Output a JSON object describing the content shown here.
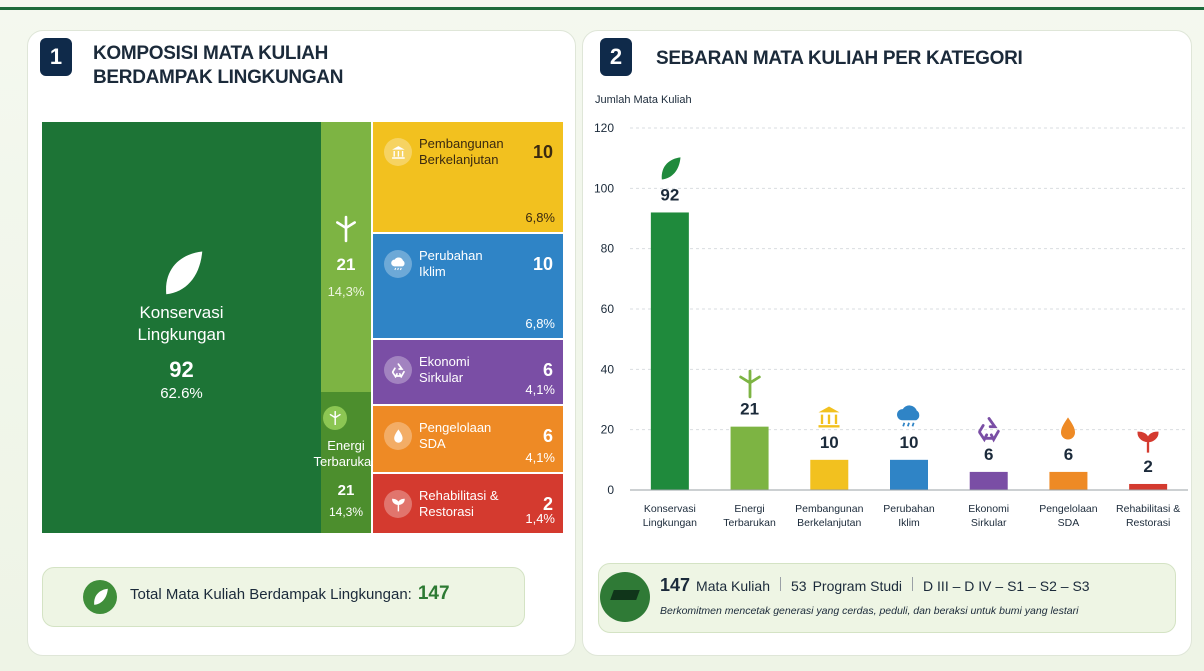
{
  "chart_data": [
    {
      "type": "treemap",
      "number": "1",
      "title": "KOMPOSISI MATA KULIAH BERDAMPAK LINGKUNGAN",
      "categories": [
        "Konservasi Lingkungan",
        "Energi Terbarukan",
        "Pembangunan Berkelanjutan",
        "Perubahan Iklim",
        "Ekonomi Sirkular",
        "Pengelolaan SDA",
        "Rehabilitasi & Restorasi"
      ],
      "values": [
        92,
        21,
        10,
        10,
        6,
        6,
        2
      ],
      "percents": [
        62.6,
        14.3,
        6.8,
        6.8,
        4.1,
        4.1,
        1.4
      ],
      "percent_labels": [
        "62.6%",
        "14,3%",
        "6,8%",
        "6,8%",
        "4,1%",
        "4,1%",
        "1,4%"
      ],
      "colors": [
        "#1d7436",
        "#7db443",
        "#f2c11f",
        "#2f84c6",
        "#7a4ea5",
        "#ee8a25",
        "#d43a2f"
      ],
      "total_label": "Total Mata Kuliah Berdampak Lingkungan:",
      "total": 147
    },
    {
      "type": "bar",
      "number": "2",
      "title": "SEBARAN MATA KULIAH PER KATEGORI",
      "y_label": "Jumlah Mata Kuliah",
      "categories": [
        "Konservasi Lingkungan",
        "Energi Terbarukan",
        "Pembangunan Berkelanjutan",
        "Perubahan Iklim",
        "Ekonomi Sirkular",
        "Pengelolaan SDA",
        "Rehabilitasi & Restorasi"
      ],
      "values": [
        92,
        21,
        10,
        10,
        6,
        6,
        2
      ],
      "colors": [
        "#1f8a3c",
        "#7db443",
        "#f2c11f",
        "#2f84c6",
        "#7a4ea5",
        "#ee8a25",
        "#d43a2f"
      ],
      "ylim": [
        0,
        120
      ],
      "yticks": [
        0,
        20,
        40,
        60,
        80,
        100,
        120
      ],
      "grid": true,
      "summary": {
        "courses": 147,
        "courses_label": "Mata Kuliah",
        "programs": 53,
        "programs_label": "Program Studi",
        "levels": "D III – D IV – S1 – S2 – S3",
        "tagline": "Berkomitmen mencetak generasi yang cerdas, peduli, dan beraksi untuk bumi yang lestari"
      }
    }
  ]
}
